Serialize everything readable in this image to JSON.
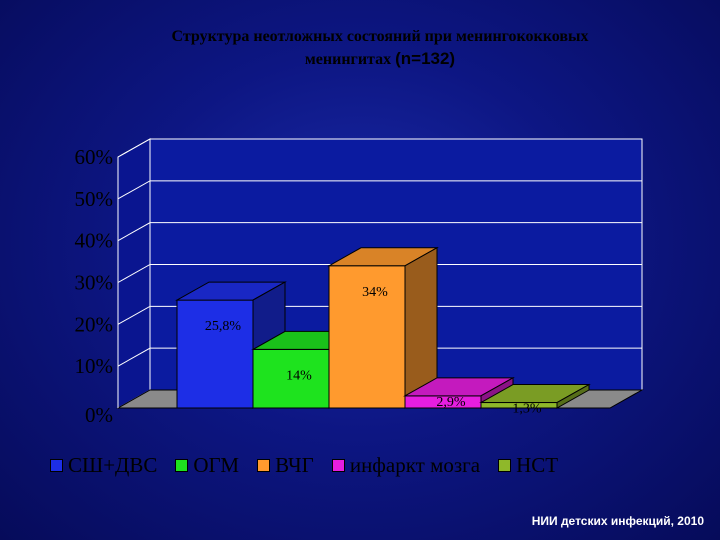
{
  "header": {
    "title_line1": "Структура  неотложных состояний при   менингококковых",
    "title_line2": "менингитах",
    "title_n": "(n=132)"
  },
  "chart_data": {
    "type": "bar",
    "categories": [
      "СШ+ДВС",
      "ОГМ",
      "ВЧГ",
      "инфаркт мозга",
      "НСТ"
    ],
    "values": [
      25.8,
      14,
      34,
      2.9,
      1.3
    ],
    "data_labels": [
      "25,8%",
      "14%",
      "34%",
      "2,9%",
      "1,3%"
    ],
    "yticks": [
      "0%",
      "10%",
      "20%",
      "30%",
      "40%",
      "50%",
      "60%"
    ],
    "ylim": [
      0,
      60
    ],
    "colors": [
      "#1d2ee6",
      "#1ee31e",
      "#ff9a2e",
      "#e61ee0",
      "#8fb82a"
    ],
    "legend_position": "bottom",
    "three_d": true
  },
  "footer": {
    "text": "НИИ детских инфекций, 2010"
  }
}
